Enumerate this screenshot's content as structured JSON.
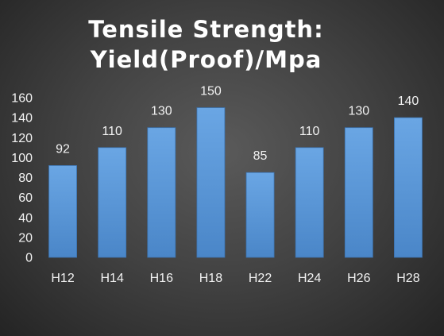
{
  "chart_data": {
    "type": "bar",
    "title_line1": "Tensile Strength:",
    "title_line2": "Yield(Proof)/Mpa",
    "categories": [
      "H12",
      "H14",
      "H16",
      "H18",
      "H22",
      "H24",
      "H26",
      "H28"
    ],
    "values": [
      92,
      110,
      130,
      150,
      85,
      110,
      130,
      140
    ],
    "data_labels": [
      "92",
      "110",
      "130",
      "150",
      "85",
      "110",
      "130",
      "140"
    ],
    "xlabel": "",
    "ylabel": "",
    "ylim": [
      0,
      160
    ],
    "yticks": [
      0,
      20,
      40,
      60,
      80,
      100,
      120,
      140,
      160
    ],
    "grid": false,
    "legend": "none",
    "colors": {
      "bar_top": "#6aa6e4",
      "bar_bottom": "#4a86c8",
      "bar_edge": "#3c74b2",
      "text": "#f2f2f2"
    }
  }
}
